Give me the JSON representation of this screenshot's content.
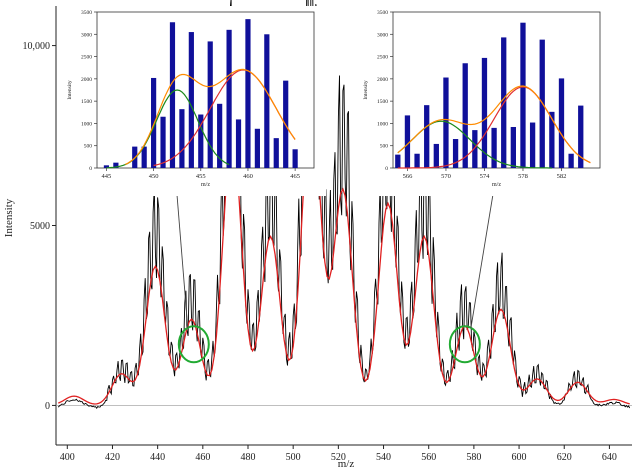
{
  "chart_data": [
    {
      "id": "main",
      "type": "line",
      "xlabel": "m/z",
      "ylabel": "Intensity",
      "xlim": [
        395,
        650
      ],
      "ylim": [
        -1100,
        11100
      ],
      "x_ticks": [
        "400",
        "420",
        "440",
        "460",
        "480",
        "500",
        "520",
        "540",
        "560",
        "580",
        "600",
        "620",
        "640"
      ],
      "y_ticks": [
        "0",
        "5000",
        "10,000"
      ],
      "colors": {
        "raw": "#000000",
        "smoothed": "#e02020",
        "highlight": "#22aa33"
      },
      "peak_clusters": [
        {
          "center": 403,
          "height": 280
        },
        {
          "center": 424,
          "height": 950
        },
        {
          "center": 439,
          "height": 4200
        },
        {
          "center": 455,
          "height": 2600
        },
        {
          "center": 473,
          "height": 8100
        },
        {
          "center": 490,
          "height": 5100
        },
        {
          "center": 508,
          "height": 9100
        },
        {
          "center": 522,
          "height": 6500
        },
        {
          "center": 542,
          "height": 6100
        },
        {
          "center": 558,
          "height": 5100
        },
        {
          "center": 576,
          "height": 2400
        },
        {
          "center": 592,
          "height": 2900
        },
        {
          "center": 608,
          "height": 800
        },
        {
          "center": 626,
          "height": 700
        },
        {
          "center": 642,
          "height": 180
        }
      ],
      "highlight_circles": [
        {
          "x": 456,
          "y": 1700
        },
        {
          "x": 576,
          "y": 1700
        }
      ]
    },
    {
      "id": "inset-left",
      "type": "bar",
      "xlabel": "m/z",
      "ylabel": "Intensity",
      "xlim": [
        444,
        467
      ],
      "ylim": [
        0,
        3500
      ],
      "x_ticks": [
        "445",
        "450",
        "455",
        "460",
        "465"
      ],
      "y_ticks": [
        "0",
        "500",
        "1000",
        "1500",
        "2000",
        "2500",
        "3000",
        "3500"
      ],
      "bars": {
        "x": [
          445,
          446,
          448,
          449,
          450,
          451,
          452,
          453,
          454,
          455,
          456,
          457,
          458,
          459,
          460,
          461,
          462,
          463,
          464,
          465
        ],
        "values": [
          60,
          120,
          480,
          480,
          2020,
          1150,
          3270,
          1320,
          3050,
          1200,
          2840,
          1440,
          3100,
          1090,
          3340,
          880,
          3000,
          670,
          1960,
          420
        ]
      },
      "fit_curves": [
        {
          "color": "#1c8a1c",
          "mu": 452.5,
          "sigma": 2.2,
          "amp": 1750,
          "xrange": [
            445,
            458
          ]
        },
        {
          "color": "#e03030",
          "mu": 459.5,
          "sigma": 3.5,
          "amp": 2200,
          "xrange": [
            450,
            465
          ]
        },
        {
          "color": "#ff8c00",
          "sum": true,
          "xrange": [
            447,
            465
          ]
        }
      ]
    },
    {
      "id": "inset-right",
      "type": "bar",
      "xlabel": "m/z",
      "ylabel": "Intensity",
      "xlim": [
        564.5,
        586
      ],
      "ylim": [
        0,
        3500
      ],
      "x_ticks": [
        "566",
        "570",
        "574",
        "578",
        "582"
      ],
      "y_ticks": [
        "0",
        "500",
        "1000",
        "1500",
        "2000",
        "2500",
        "3000",
        "3500"
      ],
      "bars": {
        "x": [
          565,
          566,
          567,
          568,
          569,
          570,
          571,
          572,
          573,
          574,
          575,
          576,
          577,
          578,
          579,
          580,
          581,
          582,
          583,
          584
        ],
        "values": [
          300,
          1180,
          320,
          1410,
          540,
          2030,
          650,
          2350,
          850,
          2470,
          900,
          2930,
          920,
          3260,
          1020,
          2880,
          1260,
          2010,
          320,
          1400
        ]
      },
      "fit_curves": [
        {
          "color": "#1c8a1c",
          "mu": 569.5,
          "sigma": 3.0,
          "amp": 1050,
          "xrange": [
            565,
            581
          ]
        },
        {
          "color": "#e03030",
          "mu": 578.0,
          "sigma": 3.0,
          "amp": 1820,
          "xrange": [
            565,
            585
          ]
        },
        {
          "color": "#ff8c00",
          "sum": true,
          "xrange": [
            565,
            585
          ]
        }
      ]
    }
  ]
}
